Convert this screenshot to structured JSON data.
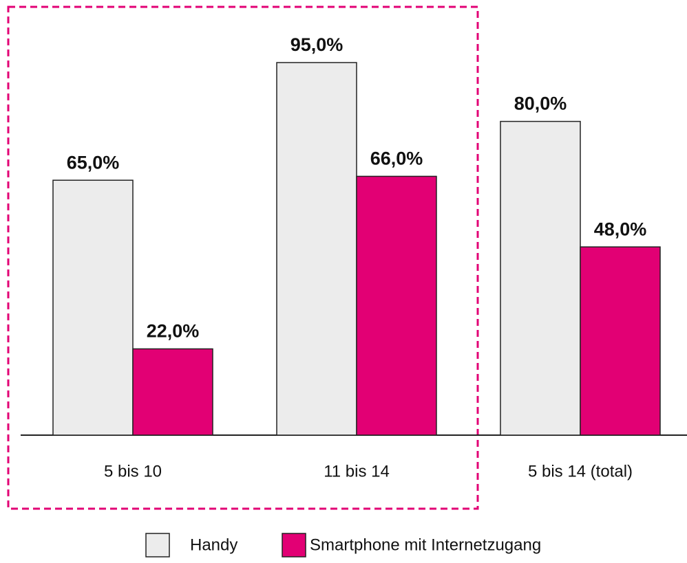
{
  "chart_data": {
    "type": "bar",
    "categories": [
      "5 bis 10",
      "11 bis 14",
      "5 bis 14 (total)"
    ],
    "series": [
      {
        "name": "Handy",
        "color": "#ececec",
        "values": [
          65,
          95,
          80
        ],
        "value_labels": [
          "65,0%",
          "95,0%",
          "80,0%"
        ]
      },
      {
        "name": "Smartphone mit Internetzugang",
        "color": "#e20074",
        "values": [
          22,
          66,
          48
        ],
        "value_labels": [
          "22,0%",
          "66,0%",
          "48,0%"
        ]
      }
    ]
  }
}
